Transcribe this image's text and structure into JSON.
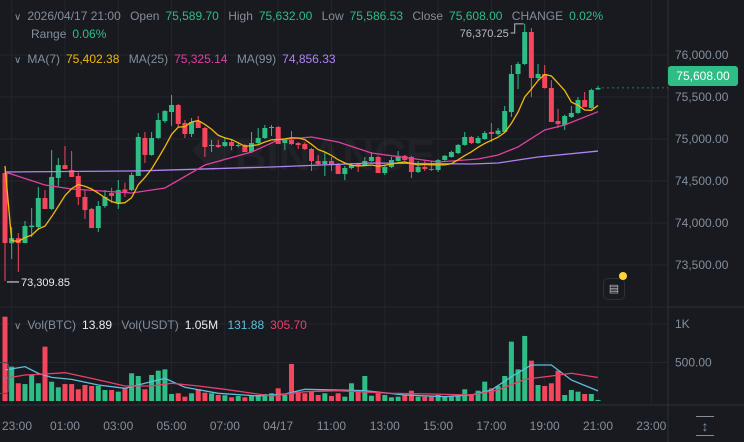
{
  "header": {
    "datetime": "2026/04/17 21:00",
    "open_label": "Open",
    "open": "75,589.70",
    "high_label": "High",
    "high": "75,632.00",
    "low_label": "Low",
    "low": "75,586.53",
    "close_label": "Close",
    "close": "75,608.00",
    "change_label": "CHANGE",
    "change": "0.02%",
    "range_label": "Range",
    "range": "0.06%"
  },
  "ma_legend": {
    "ma7_label": "MA(7)",
    "ma7": "75,402.38",
    "ma25_label": "MA(25)",
    "ma25": "75,325.14",
    "ma99_label": "MA(99)",
    "ma99": "74,856.33"
  },
  "vol_legend": {
    "vol_btc_label": "Vol(BTC)",
    "vol_btc": "13.89",
    "vol_usdt_label": "Vol(USDT)",
    "vol_usdt": "1.05M",
    "vol_ma1": "131.88",
    "vol_ma2": "305.70"
  },
  "current_price": "75,608.00",
  "watermark": "BINANCE",
  "colors": {
    "up": "#2ebd85",
    "down": "#f6465d",
    "ma7": "#f0b90b",
    "ma25": "#e040a0",
    "ma99": "#b084f5",
    "vol_ma1": "#5bc0de",
    "vol_ma2": "#e8406a",
    "background": "#181a20"
  },
  "icons": {
    "news": "news-icon",
    "collapse": "chevron-right-icon",
    "scale": "vertical-resize-icon"
  },
  "chart_data": {
    "type": "candlestick",
    "interval_minutes": 15,
    "price_axis": {
      "ticks": [
        76000,
        75500,
        75000,
        74500,
        74000,
        73500
      ],
      "tick_labels": [
        "76,000.00",
        "75,500.00",
        "75,000.00",
        "74,500.00",
        "74,000.00",
        "73,500.00"
      ],
      "ylim": [
        73200,
        76650
      ]
    },
    "volume_axis": {
      "ticks": [
        1000,
        500
      ],
      "tick_labels": [
        "1K",
        "500.00"
      ]
    },
    "time_labels": [
      "23:00",
      "01:00",
      "03:00",
      "05:00",
      "07:00",
      "04/17",
      "11:00",
      "13:00",
      "15:00",
      "17:00",
      "19:00",
      "21:00",
      "23:00"
    ],
    "annotations": {
      "high_marker": "76,370.25",
      "low_marker": "73,309.85"
    },
    "grid": true,
    "candles_ohlc": [
      [
        74595,
        74630,
        73310,
        73762
      ],
      [
        73760,
        73952,
        73571,
        73820
      ],
      [
        73820,
        73880,
        73417,
        73760
      ],
      [
        73762,
        74024,
        73760,
        73964
      ],
      [
        73950,
        74179,
        73833,
        73970
      ],
      [
        73952,
        74428,
        73917,
        74298
      ],
      [
        74298,
        74393,
        74167,
        74167
      ],
      [
        74167,
        74869,
        74155,
        74548
      ],
      [
        74536,
        74774,
        74440,
        74690
      ],
      [
        74690,
        74917,
        74643,
        74643
      ],
      [
        74630,
        74857,
        74548,
        74548
      ],
      [
        74560,
        74600,
        74214,
        74310
      ],
      [
        74310,
        74393,
        74048,
        74155
      ],
      [
        74167,
        74179,
        73940,
        73940
      ],
      [
        73940,
        74262,
        73893,
        74202
      ],
      [
        74202,
        74393,
        74180,
        74310
      ],
      [
        74357,
        74420,
        74240,
        74322
      ],
      [
        74238,
        74512,
        74167,
        74393
      ],
      [
        74400,
        74480,
        74310,
        74370
      ],
      [
        74393,
        74600,
        74380,
        74571
      ],
      [
        74560,
        75071,
        74560,
        75024
      ],
      [
        75012,
        75083,
        74714,
        74810
      ],
      [
        74810,
        75083,
        74800,
        75012
      ],
      [
        75012,
        75310,
        75000,
        75226
      ],
      [
        75214,
        75345,
        75190,
        75333
      ],
      [
        75321,
        75524,
        75155,
        75405
      ],
      [
        75405,
        75417,
        75143,
        75179
      ],
      [
        75191,
        75226,
        75012,
        75060
      ],
      [
        75060,
        75250,
        75024,
        75202
      ],
      [
        75214,
        75274,
        75131,
        75131
      ],
      [
        75131,
        75143,
        74786,
        74905
      ],
      [
        74917,
        74988,
        74845,
        74929
      ],
      [
        74929,
        74988,
        74893,
        74905
      ],
      [
        74917,
        75024,
        74905,
        74964
      ],
      [
        74964,
        74988,
        74869,
        74917
      ],
      [
        74917,
        74950,
        74900,
        74929
      ],
      [
        74929,
        74940,
        74845,
        74845
      ],
      [
        74845,
        75083,
        74833,
        74952
      ],
      [
        74952,
        75131,
        74940,
        75012
      ],
      [
        75012,
        75167,
        75000,
        75131
      ],
      [
        75131,
        75167,
        75036,
        75143
      ],
      [
        75143,
        75155,
        74940,
        74940
      ],
      [
        74952,
        75000,
        74869,
        74988
      ],
      [
        74988,
        75095,
        74930,
        74940
      ],
      [
        74952,
        74964,
        74881,
        74928
      ],
      [
        74940,
        74960,
        74870,
        74881
      ],
      [
        74881,
        74893,
        74619,
        74738
      ],
      [
        74738,
        74810,
        74690,
        74702
      ],
      [
        74702,
        74845,
        74560,
        74738
      ],
      [
        74738,
        74786,
        74619,
        74702
      ],
      [
        74702,
        74714,
        74583,
        74583
      ],
      [
        74583,
        74680,
        74510,
        74655
      ],
      [
        74655,
        74714,
        74640,
        74690
      ],
      [
        74702,
        74714,
        74607,
        74680
      ],
      [
        74690,
        74786,
        74680,
        74738
      ],
      [
        74738,
        74845,
        74730,
        74786
      ],
      [
        74786,
        74800,
        74595,
        74595
      ],
      [
        74595,
        74690,
        74571,
        74667
      ],
      [
        74667,
        74786,
        74655,
        74750
      ],
      [
        74738,
        74857,
        74730,
        74800
      ],
      [
        74800,
        74810,
        74740,
        74750
      ],
      [
        74786,
        74800,
        74536,
        74607
      ],
      [
        74607,
        74738,
        74595,
        74667
      ],
      [
        74667,
        74738,
        74619,
        74643
      ],
      [
        74643,
        74738,
        74620,
        74631
      ],
      [
        74631,
        74762,
        74607,
        74750
      ],
      [
        74750,
        74810,
        74740,
        74800
      ],
      [
        74786,
        74860,
        74780,
        74845
      ],
      [
        74833,
        74940,
        74820,
        74929
      ],
      [
        74929,
        75083,
        74920,
        75024
      ],
      [
        75024,
        75036,
        74940,
        74952
      ],
      [
        74952,
        75036,
        74940,
        75012
      ],
      [
        75000,
        75095,
        74990,
        75071
      ],
      [
        75083,
        75190,
        74964,
        75060
      ],
      [
        75060,
        75131,
        75040,
        75100
      ],
      [
        75083,
        75393,
        75070,
        75333
      ],
      [
        75321,
        75881,
        75262,
        75774
      ],
      [
        75774,
        75917,
        75595,
        75893
      ],
      [
        75893,
        76370.25,
        75880,
        76274
      ],
      [
        76274,
        76320,
        75500,
        75726
      ],
      [
        75726,
        75893,
        75700,
        75774
      ],
      [
        75774,
        75881,
        75600,
        75607
      ],
      [
        75607,
        75700,
        75202,
        75202
      ],
      [
        75214,
        75360,
        75131,
        75179
      ],
      [
        75167,
        75290,
        75107,
        75274
      ],
      [
        75262,
        75393,
        75250,
        75310
      ],
      [
        75310,
        75500,
        75300,
        75464
      ],
      [
        75464,
        75560,
        75380,
        75380
      ],
      [
        75369,
        75600,
        75360,
        75583
      ],
      [
        75589.7,
        75632.0,
        75586.53,
        75608.0
      ]
    ],
    "volumes": [
      1095,
      446,
      230,
      220,
      338,
      230,
      706,
      250,
      178,
      220,
      220,
      152,
      208,
      195,
      195,
      143,
      143,
      121,
      165,
      360,
      325,
      152,
      338,
      394,
      411,
      91,
      100,
      56,
      100,
      152,
      108,
      100,
      78,
      74,
      48,
      65,
      48,
      65,
      78,
      91,
      100,
      165,
      78,
      481,
      121,
      100,
      121,
      78,
      100,
      65,
      100,
      56,
      230,
      134,
      325,
      69,
      100,
      78,
      48,
      56,
      87,
      134,
      56,
      56,
      56,
      78,
      56,
      56,
      65,
      152,
      91,
      134,
      251,
      165,
      195,
      325,
      771,
      411,
      845,
      524,
      208,
      195,
      230,
      394,
      78,
      143,
      121,
      91,
      91,
      13.89
    ],
    "ma25_points": [
      [
        0,
        74607
      ],
      [
        6,
        74452
      ],
      [
        10,
        74405
      ],
      [
        19,
        74357
      ],
      [
        24,
        74417
      ],
      [
        30,
        74690
      ],
      [
        37,
        74845
      ],
      [
        41,
        74988
      ],
      [
        46,
        75024
      ],
      [
        50,
        74964
      ],
      [
        55,
        74833
      ],
      [
        65,
        74726
      ],
      [
        71,
        74762
      ],
      [
        74,
        74810
      ],
      [
        77,
        74905
      ],
      [
        81,
        75107
      ],
      [
        84,
        75167
      ],
      [
        89,
        75325.14
      ]
    ],
    "ma99_points": [
      [
        0,
        74607
      ],
      [
        20,
        74620
      ],
      [
        40,
        74667
      ],
      [
        55,
        74714
      ],
      [
        70,
        74702
      ],
      [
        74,
        74714
      ],
      [
        80,
        74786
      ],
      [
        89,
        74856.33
      ]
    ],
    "vol_ma1_points": [
      [
        0,
        403
      ],
      [
        3,
        446
      ],
      [
        5,
        359
      ],
      [
        7,
        307
      ],
      [
        10,
        281
      ],
      [
        14,
        208
      ],
      [
        18,
        165
      ],
      [
        21,
        230
      ],
      [
        24,
        294
      ],
      [
        27,
        178
      ],
      [
        32,
        100
      ],
      [
        38,
        65
      ],
      [
        42,
        91
      ],
      [
        45,
        152
      ],
      [
        50,
        143
      ],
      [
        54,
        134
      ],
      [
        60,
        78
      ],
      [
        66,
        56
      ],
      [
        70,
        78
      ],
      [
        73,
        143
      ],
      [
        76,
        316
      ],
      [
        79,
        468
      ],
      [
        82,
        468
      ],
      [
        85,
        273
      ],
      [
        89,
        131.88
      ]
    ],
    "vol_ma2_points": [
      [
        0,
        294
      ],
      [
        3,
        338
      ],
      [
        6,
        351
      ],
      [
        9,
        368
      ],
      [
        13,
        294
      ],
      [
        18,
        195
      ],
      [
        22,
        195
      ],
      [
        25,
        230
      ],
      [
        29,
        195
      ],
      [
        33,
        152
      ],
      [
        40,
        65
      ],
      [
        45,
        121
      ],
      [
        50,
        134
      ],
      [
        58,
        100
      ],
      [
        64,
        91
      ],
      [
        70,
        78
      ],
      [
        74,
        143
      ],
      [
        78,
        281
      ],
      [
        82,
        325
      ],
      [
        85,
        360
      ],
      [
        89,
        305.7
      ]
    ]
  }
}
